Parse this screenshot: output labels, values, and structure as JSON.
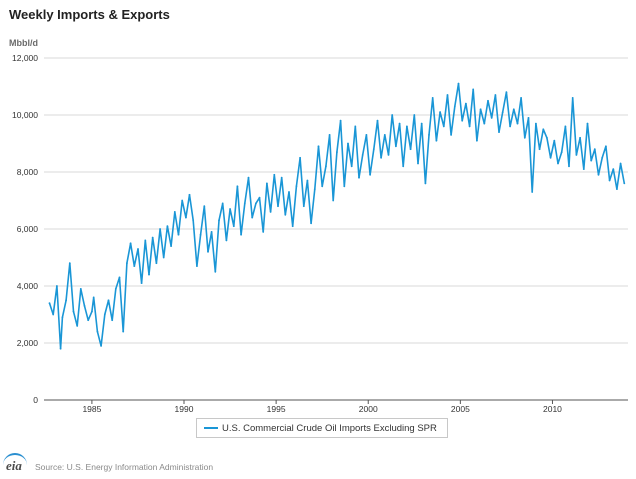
{
  "title": "Weekly Imports & Exports",
  "unit_label": "Mbbl/d",
  "source": "Source: U.S. Energy Information Administration",
  "logo_text": "eia",
  "colors": {
    "series": "#1a96d6",
    "grid": "#d8d8d8",
    "axis": "#555555"
  },
  "chart_data": {
    "type": "line",
    "title": "Weekly Imports & Exports",
    "ylabel": "Mbbl/d",
    "xlabel": "",
    "ylim": [
      0,
      12000
    ],
    "xlim": [
      1982.4,
      2014.1
    ],
    "yticks": [
      0,
      2000,
      4000,
      6000,
      8000,
      10000,
      12000
    ],
    "ytick_labels": [
      "0",
      "2,000",
      "4,000",
      "6,000",
      "8,000",
      "10,000",
      "12,000"
    ],
    "xticks": [
      1985,
      1990,
      1995,
      2000,
      2005,
      2010
    ],
    "xtick_labels": [
      "1985",
      "1990",
      "1995",
      "2000",
      "2005",
      "2010"
    ],
    "grid": "horizontal",
    "legend_position": "bottom-center",
    "series": [
      {
        "name": "U.S. Commercial Crude Oil Imports Excluding SPR",
        "color": "#1a96d6",
        "x": [
          1982.7,
          1982.9,
          1983.1,
          1983.3,
          1983.4,
          1983.6,
          1983.8,
          1984.0,
          1984.2,
          1984.4,
          1984.6,
          1984.8,
          1985.0,
          1985.1,
          1985.3,
          1985.5,
          1985.7,
          1985.9,
          1986.1,
          1986.3,
          1986.5,
          1986.7,
          1986.9,
          1987.1,
          1987.3,
          1987.5,
          1987.7,
          1987.9,
          1988.1,
          1988.3,
          1988.5,
          1988.7,
          1988.9,
          1989.1,
          1989.3,
          1989.5,
          1989.7,
          1989.9,
          1990.1,
          1990.3,
          1990.5,
          1990.7,
          1990.9,
          1991.1,
          1991.3,
          1991.5,
          1991.7,
          1991.9,
          1992.1,
          1992.3,
          1992.5,
          1992.7,
          1992.9,
          1993.1,
          1993.3,
          1993.5,
          1993.7,
          1993.9,
          1994.1,
          1994.3,
          1994.5,
          1994.7,
          1994.9,
          1995.1,
          1995.3,
          1995.5,
          1995.7,
          1995.9,
          1996.1,
          1996.3,
          1996.5,
          1996.7,
          1996.9,
          1997.1,
          1997.3,
          1997.5,
          1997.7,
          1997.9,
          1998.1,
          1998.3,
          1998.5,
          1998.7,
          1998.9,
          1999.1,
          1999.3,
          1999.5,
          1999.7,
          1999.9,
          2000.1,
          2000.3,
          2000.5,
          2000.7,
          2000.9,
          2001.1,
          2001.3,
          2001.5,
          2001.7,
          2001.9,
          2002.1,
          2002.3,
          2002.5,
          2002.7,
          2002.9,
          2003.1,
          2003.3,
          2003.5,
          2003.7,
          2003.9,
          2004.1,
          2004.3,
          2004.5,
          2004.7,
          2004.9,
          2005.1,
          2005.3,
          2005.5,
          2005.7,
          2005.9,
          2006.1,
          2006.3,
          2006.5,
          2006.7,
          2006.9,
          2007.1,
          2007.3,
          2007.5,
          2007.7,
          2007.9,
          2008.1,
          2008.3,
          2008.5,
          2008.7,
          2008.9,
          2009.1,
          2009.3,
          2009.5,
          2009.7,
          2009.9,
          2010.1,
          2010.3,
          2010.5,
          2010.7,
          2010.9,
          2011.1,
          2011.3,
          2011.5,
          2011.7,
          2011.9,
          2012.1,
          2012.3,
          2012.5,
          2012.7,
          2012.9,
          2013.1,
          2013.3,
          2013.5,
          2013.7,
          2013.9
        ],
        "y": [
          3400,
          3000,
          4000,
          1800,
          2900,
          3500,
          4800,
          3100,
          2600,
          3900,
          3300,
          2800,
          3100,
          3600,
          2400,
          1900,
          3000,
          3500,
          2800,
          3900,
          4300,
          2400,
          4800,
          5500,
          4700,
          5300,
          4100,
          5600,
          4400,
          5700,
          4800,
          6000,
          5000,
          6100,
          5400,
          6600,
          5800,
          7000,
          6400,
          7200,
          6300,
          4700,
          5800,
          6800,
          5200,
          5900,
          4500,
          6300,
          6900,
          5600,
          6700,
          6100,
          7500,
          5800,
          6900,
          7800,
          6400,
          6900,
          7100,
          5900,
          7600,
          6600,
          7900,
          6800,
          7800,
          6500,
          7300,
          6100,
          7500,
          8500,
          6800,
          7700,
          6200,
          7400,
          8900,
          7500,
          8200,
          9300,
          7000,
          8700,
          9800,
          7500,
          9000,
          8200,
          9600,
          7800,
          8600,
          9300,
          7900,
          8800,
          9800,
          8500,
          9300,
          8600,
          10000,
          8900,
          9700,
          8200,
          9600,
          8800,
          10000,
          8300,
          9700,
          7600,
          9300,
          10600,
          9100,
          10100,
          9600,
          10700,
          9300,
          10300,
          11100,
          9800,
          10400,
          9600,
          10900,
          9100,
          10200,
          9700,
          10500,
          9900,
          10700,
          9400,
          10100,
          10800,
          9600,
          10200,
          9700,
          10600,
          9200,
          9900,
          7300,
          9700,
          8800,
          9500,
          9200,
          8500,
          9100,
          8300,
          8700,
          9600,
          8200,
          10600,
          8600,
          9200,
          8100,
          9700,
          8400,
          8800,
          7900,
          8500,
          8900,
          7700,
          8100,
          7400,
          8300,
          7600
        ]
      }
    ]
  }
}
